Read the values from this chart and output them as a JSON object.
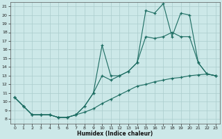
{
  "xlabel": "Humidex (Indice chaleur)",
  "ylabel": "",
  "bg_color": "#cce8e8",
  "line_color": "#1a6b60",
  "grid_color": "#aacccc",
  "xlim": [
    -0.5,
    23.5
  ],
  "ylim": [
    7.5,
    21.5
  ],
  "xticks": [
    0,
    1,
    2,
    3,
    4,
    5,
    6,
    7,
    8,
    9,
    10,
    11,
    12,
    13,
    14,
    15,
    16,
    17,
    18,
    19,
    20,
    21,
    22,
    23
  ],
  "yticks": [
    8,
    9,
    10,
    11,
    12,
    13,
    14,
    15,
    16,
    17,
    18,
    19,
    20,
    21
  ],
  "line1_x": [
    0,
    1,
    2,
    3,
    4,
    5,
    6,
    7,
    8,
    9,
    10,
    11,
    12,
    13,
    14,
    15,
    16,
    17,
    18,
    19,
    20,
    21,
    22,
    23
  ],
  "line1_y": [
    10.5,
    9.5,
    8.5,
    8.5,
    8.5,
    8.2,
    8.2,
    8.5,
    9.5,
    11.0,
    13.0,
    12.5,
    13.0,
    13.5,
    14.5,
    17.5,
    17.3,
    17.5,
    18.0,
    17.5,
    17.5,
    14.5,
    13.2,
    13.0
  ],
  "line2_x": [
    0,
    1,
    2,
    3,
    4,
    5,
    6,
    7,
    8,
    9,
    10,
    11,
    12,
    13,
    14,
    15,
    16,
    17,
    18,
    19,
    20,
    21,
    22,
    23
  ],
  "line2_y": [
    10.5,
    9.5,
    8.5,
    8.5,
    8.5,
    8.2,
    8.2,
    8.5,
    9.5,
    11.0,
    16.5,
    13.0,
    13.0,
    13.5,
    14.5,
    20.5,
    20.2,
    21.3,
    17.5,
    20.2,
    20.0,
    14.5,
    13.2,
    13.0
  ],
  "line3_x": [
    0,
    1,
    2,
    3,
    4,
    5,
    6,
    7,
    8,
    9,
    10,
    11,
    12,
    13,
    14,
    15,
    16,
    17,
    18,
    19,
    20,
    21,
    22,
    23
  ],
  "line3_y": [
    10.5,
    9.5,
    8.5,
    8.5,
    8.5,
    8.2,
    8.2,
    8.5,
    8.8,
    9.2,
    9.8,
    10.3,
    10.8,
    11.3,
    11.8,
    12.0,
    12.3,
    12.5,
    12.7,
    12.8,
    13.0,
    13.1,
    13.2,
    13.0
  ]
}
